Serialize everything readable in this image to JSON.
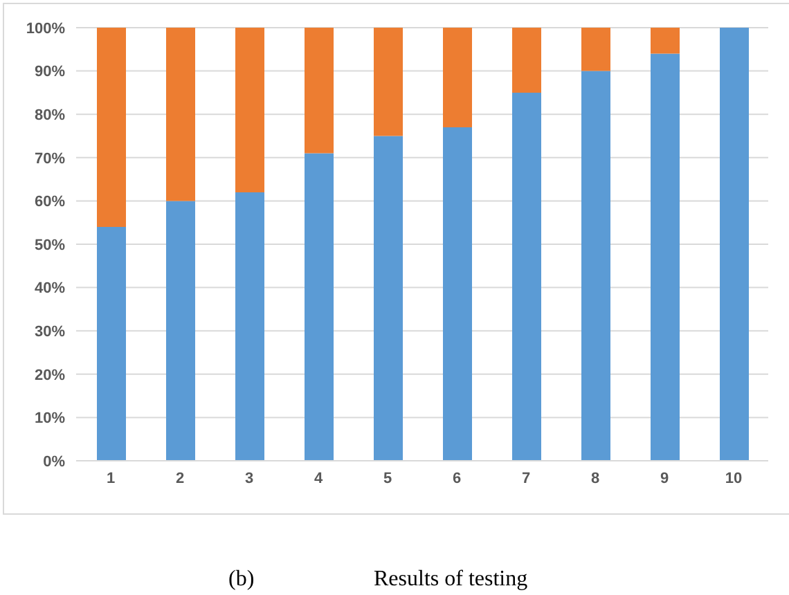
{
  "chart_data": {
    "type": "bar",
    "stacked": true,
    "categories": [
      "1",
      "2",
      "3",
      "4",
      "5",
      "6",
      "7",
      "8",
      "9",
      "10"
    ],
    "series": [
      {
        "color": "#5b9bd5",
        "values": [
          54,
          60,
          62,
          71,
          75,
          77,
          85,
          90,
          94,
          100
        ]
      },
      {
        "color": "#ed7d31",
        "values": [
          46,
          40,
          38,
          29,
          25,
          23,
          15,
          10,
          6,
          0
        ]
      }
    ],
    "ylim": [
      0,
      100
    ],
    "yticks": [
      {
        "value": 0,
        "label": "0%"
      },
      {
        "value": 10,
        "label": "10%"
      },
      {
        "value": 20,
        "label": "20%"
      },
      {
        "value": 30,
        "label": "30%"
      },
      {
        "value": 40,
        "label": "40%"
      },
      {
        "value": 50,
        "label": "50%"
      },
      {
        "value": 60,
        "label": "60%"
      },
      {
        "value": 70,
        "label": "70%"
      },
      {
        "value": 80,
        "label": "80%"
      },
      {
        "value": 90,
        "label": "90%"
      },
      {
        "value": 100,
        "label": "100%"
      }
    ],
    "grid": "y",
    "annotations": [
      "(b)",
      "Results of testing"
    ]
  }
}
